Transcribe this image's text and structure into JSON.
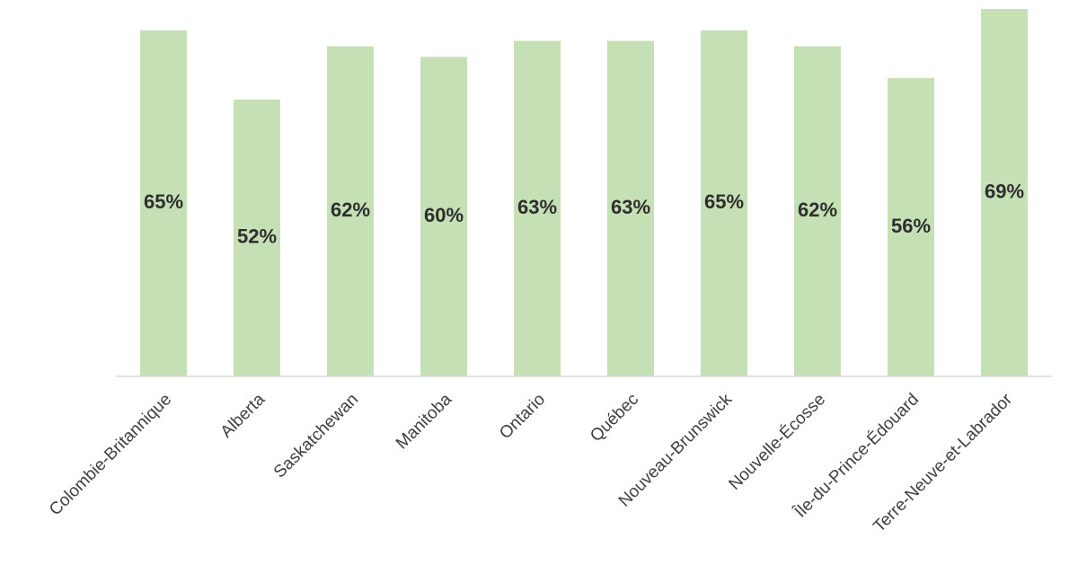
{
  "chart_data": {
    "type": "bar",
    "categories": [
      "Colombie-Britannique",
      "Alberta",
      "Saskatchewan",
      "Manitoba",
      "Ontario",
      "Québec",
      "Nouveau-Brunswick",
      "Nouvelle-Écosse",
      "Île-du-Prince-Édouard",
      "Terre-Neuve-et-Labrador"
    ],
    "values": [
      65,
      52,
      62,
      60,
      63,
      63,
      65,
      62,
      56,
      69
    ],
    "value_labels": [
      "65%",
      "52%",
      "62%",
      "60%",
      "63%",
      "63%",
      "65%",
      "62%",
      "56%",
      "69%"
    ],
    "color": "#c5e0b4"
  }
}
